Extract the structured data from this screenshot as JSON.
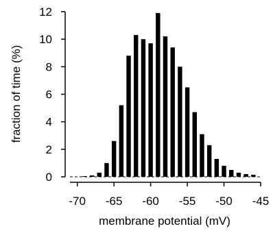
{
  "chart_data": {
    "type": "bar",
    "xlabel": "membrane potential (mV)",
    "ylabel": "fraction of time (%)",
    "xlim": [
      -71,
      -45
    ],
    "ylim": [
      0,
      12
    ],
    "x_ticks": [
      -70,
      -65,
      -60,
      -55,
      -50,
      -45
    ],
    "y_ticks": [
      0,
      2,
      4,
      6,
      8,
      10,
      12
    ],
    "bin_width_mV": 1,
    "x": [
      -69,
      -68,
      -67,
      -66,
      -65,
      -64,
      -63,
      -62,
      -61,
      -60,
      -59,
      -58,
      -57,
      -56,
      -55,
      -54,
      -53,
      -52,
      -51,
      -50,
      -49,
      -48,
      -47,
      -46
    ],
    "values": [
      0.05,
      0.1,
      0.3,
      1.0,
      2.6,
      5.2,
      8.8,
      10.3,
      10.0,
      9.7,
      11.9,
      10.2,
      9.4,
      8.0,
      6.5,
      4.7,
      3.1,
      2.3,
      1.3,
      0.8,
      0.5,
      0.3,
      0.2,
      0.15
    ],
    "grid": false,
    "legend": "none",
    "bar_color": "#000000",
    "baseline_style": "dashed"
  }
}
